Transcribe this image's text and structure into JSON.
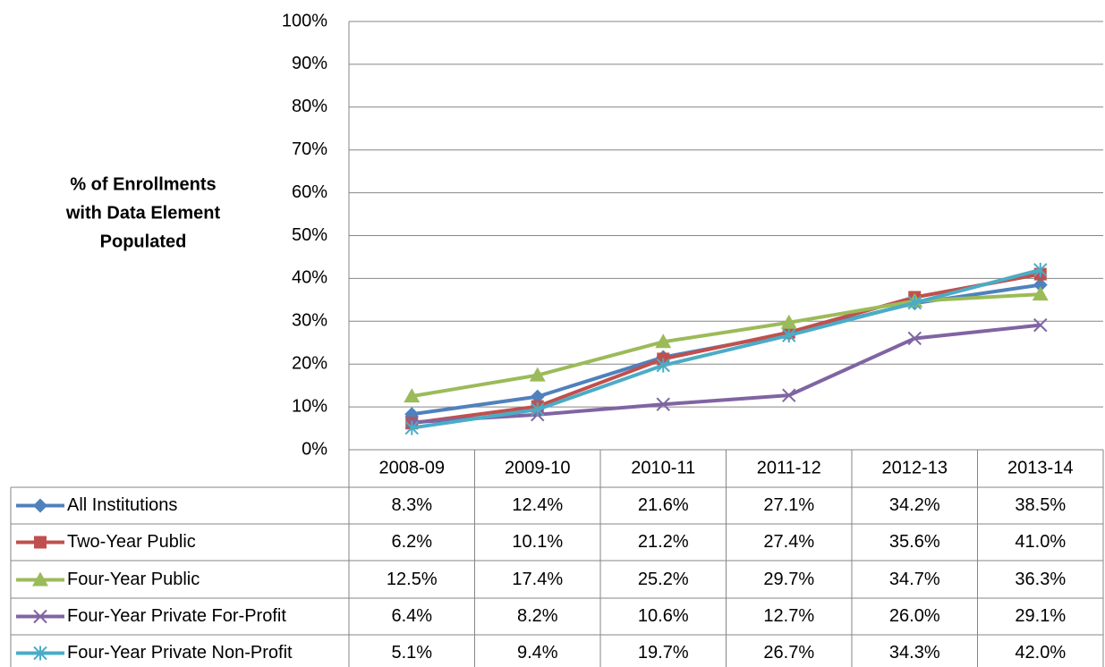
{
  "chart_data": {
    "type": "line",
    "y_label": [
      "% of Enrollments",
      "with Data Element",
      "Populated"
    ],
    "categories": [
      "2008-09",
      "2009-10",
      "2010-11",
      "2011-12",
      "2012-13",
      "2013-14"
    ],
    "ylim": [
      0,
      100
    ],
    "yticks": [
      {
        "value": 0,
        "label": "0%"
      },
      {
        "value": 10,
        "label": "10%"
      },
      {
        "value": 20,
        "label": "20%"
      },
      {
        "value": 30,
        "label": "30%"
      },
      {
        "value": 40,
        "label": "40%"
      },
      {
        "value": 50,
        "label": "50%"
      },
      {
        "value": 60,
        "label": "60%"
      },
      {
        "value": 70,
        "label": "70%"
      },
      {
        "value": 80,
        "label": "80%"
      },
      {
        "value": 90,
        "label": "90%"
      },
      {
        "value": 100,
        "label": "100%"
      }
    ],
    "grid": true,
    "series": [
      {
        "name": "All Institutions",
        "color": "#4f81bd",
        "marker": "diamond",
        "values": [
          8.3,
          12.4,
          21.6,
          27.1,
          34.2,
          38.5
        ],
        "value_labels": [
          "8.3%",
          "12.4%",
          "21.6%",
          "27.1%",
          "34.2%",
          "38.5%"
        ]
      },
      {
        "name": "Two-Year Public",
        "color": "#c0504d",
        "marker": "square",
        "values": [
          6.2,
          10.1,
          21.2,
          27.4,
          35.6,
          41.0
        ],
        "value_labels": [
          "6.2%",
          "10.1%",
          "21.2%",
          "27.4%",
          "35.6%",
          "41.0%"
        ]
      },
      {
        "name": "Four-Year Public",
        "color": "#9bbb59",
        "marker": "triangle",
        "values": [
          12.5,
          17.4,
          25.2,
          29.7,
          34.7,
          36.3
        ],
        "value_labels": [
          "12.5%",
          "17.4%",
          "25.2%",
          "29.7%",
          "34.7%",
          "36.3%"
        ]
      },
      {
        "name": "Four-Year Private For-Profit",
        "color": "#8064a2",
        "marker": "x",
        "values": [
          6.4,
          8.2,
          10.6,
          12.7,
          26.0,
          29.1
        ],
        "value_labels": [
          "6.4%",
          "8.2%",
          "10.6%",
          "12.7%",
          "26.0%",
          "29.1%"
        ]
      },
      {
        "name": "Four-Year Private Non-Profit",
        "color": "#4bacc6",
        "marker": "asterisk",
        "values": [
          5.1,
          9.4,
          19.7,
          26.7,
          34.3,
          42.0
        ],
        "value_labels": [
          "5.1%",
          "9.4%",
          "19.7%",
          "26.7%",
          "34.3%",
          "42.0%"
        ]
      }
    ]
  }
}
